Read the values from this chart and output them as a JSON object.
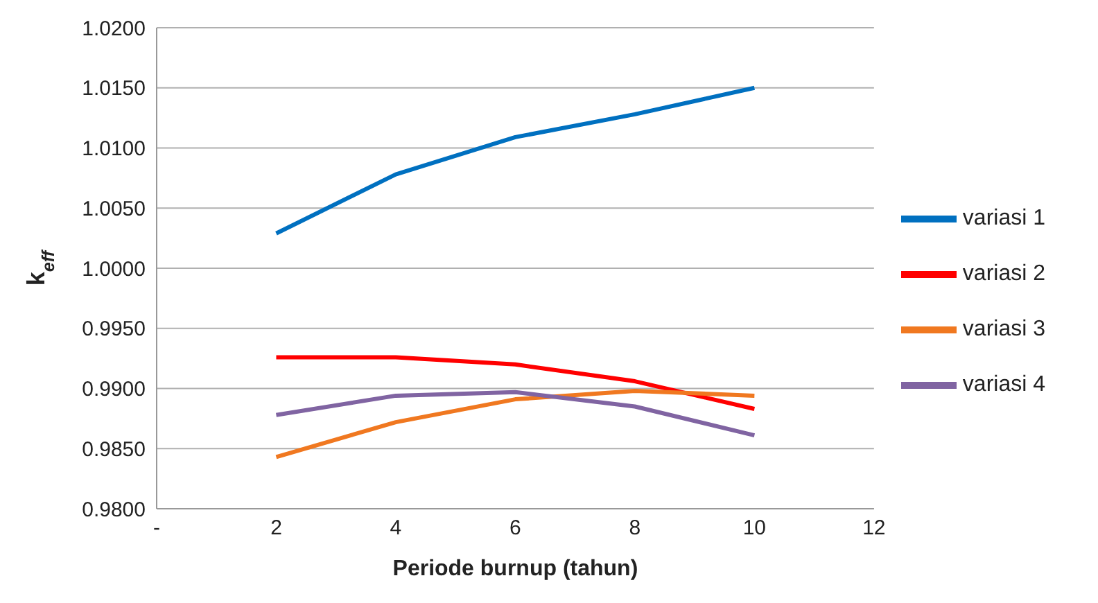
{
  "chart_data": {
    "type": "line",
    "xlabel": "Periode burnup (tahun)",
    "ylabel": "k$_{eff}$",
    "x": [
      2,
      4,
      6,
      8,
      10
    ],
    "series": [
      {
        "name": "variasi 1",
        "color": "#0070c0",
        "values": [
          1.0029,
          1.0078,
          1.0109,
          1.0128,
          1.015
        ]
      },
      {
        "name": "variasi 2",
        "color": "#ff0000",
        "values": [
          0.9926,
          0.9926,
          0.992,
          0.9906,
          0.9883
        ]
      },
      {
        "name": "variasi 3",
        "color": "#f07820",
        "values": [
          0.9843,
          0.9872,
          0.9891,
          0.9898,
          0.9894
        ]
      },
      {
        "name": "variasi 4",
        "color": "#8064a2",
        "values": [
          0.9878,
          0.9894,
          0.9897,
          0.9885,
          0.9861
        ]
      }
    ],
    "xlim": [
      0,
      12
    ],
    "xticks": [
      {
        "value": 0,
        "label": "-"
      },
      2,
      4,
      6,
      8,
      10,
      12
    ],
    "ylim": [
      0.98,
      1.02
    ],
    "yticks": [
      {
        "value": 0.98,
        "label": "0.9800"
      },
      {
        "value": 0.985,
        "label": "0.9850"
      },
      {
        "value": 0.99,
        "label": "0.9900"
      },
      {
        "value": 0.995,
        "label": "0.9950"
      },
      {
        "value": 1.0,
        "label": "1.0000"
      },
      {
        "value": 1.005,
        "label": "1.0050"
      },
      {
        "value": 1.01,
        "label": "1.0100"
      },
      {
        "value": 1.015,
        "label": "1.0150"
      },
      {
        "value": 1.02,
        "label": "1.0200"
      }
    ],
    "grid": "y",
    "legend": "right",
    "marker": "none",
    "line_style": "solid"
  }
}
